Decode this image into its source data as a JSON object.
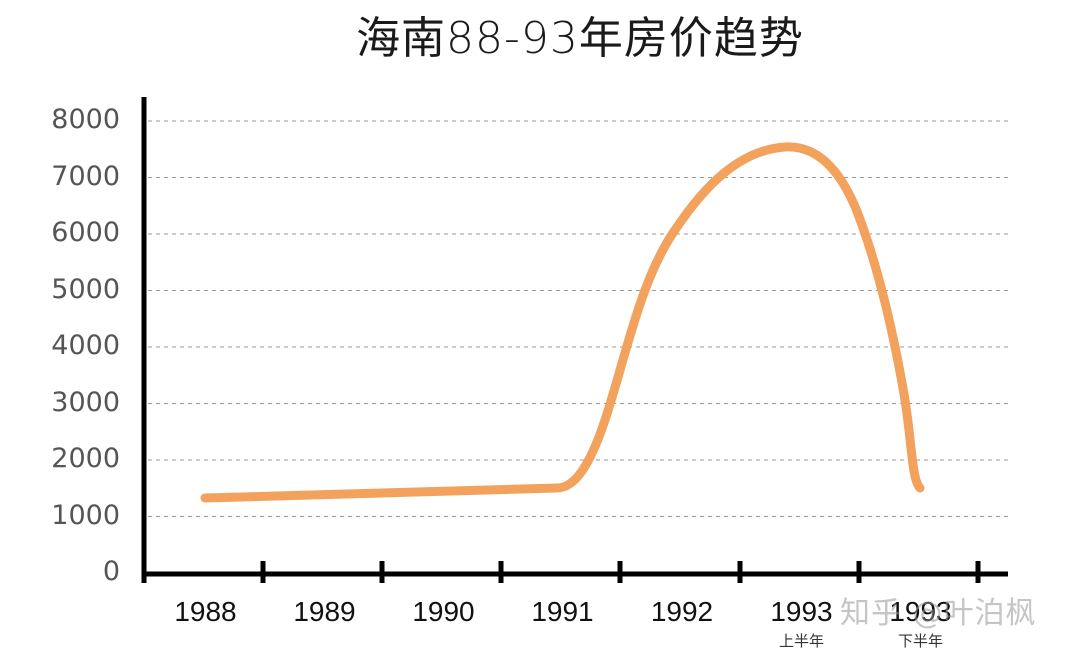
{
  "title": "海南88-93年房价趋势",
  "watermark": "知乎 @叶泊枫",
  "colors": {
    "line": "#F2A25C",
    "axis": "#000000",
    "grid": "#9a9a9a",
    "ytick_text": "#555555"
  },
  "y_ticks": [
    "0",
    "1000",
    "2000",
    "3000",
    "4000",
    "5000",
    "6000",
    "7000",
    "8000"
  ],
  "x_labels": [
    {
      "label": "1988",
      "sub": ""
    },
    {
      "label": "1989",
      "sub": ""
    },
    {
      "label": "1990",
      "sub": ""
    },
    {
      "label": "1991",
      "sub": ""
    },
    {
      "label": "1992",
      "sub": ""
    },
    {
      "label": "1993",
      "sub": "上半年"
    },
    {
      "label": "1993",
      "sub": "下半年"
    }
  ],
  "chart_data": {
    "type": "line",
    "title": "海南88-93年房价趋势",
    "xlabel": "",
    "ylabel": "",
    "categories": [
      "1988",
      "1989",
      "1990",
      "1991",
      "1992",
      "1993 上半年",
      "1993 下半年"
    ],
    "series": [
      {
        "name": "房价",
        "values": [
          1300,
          1400,
          1450,
          1500,
          6000,
          7500,
          1500
        ]
      }
    ],
    "ylim": [
      0,
      8000
    ],
    "y_ticks": [
      0,
      1000,
      2000,
      3000,
      4000,
      5000,
      6000,
      7000,
      8000
    ],
    "grid": true,
    "legend": null,
    "annotations": [
      "上半年",
      "下半年"
    ]
  }
}
